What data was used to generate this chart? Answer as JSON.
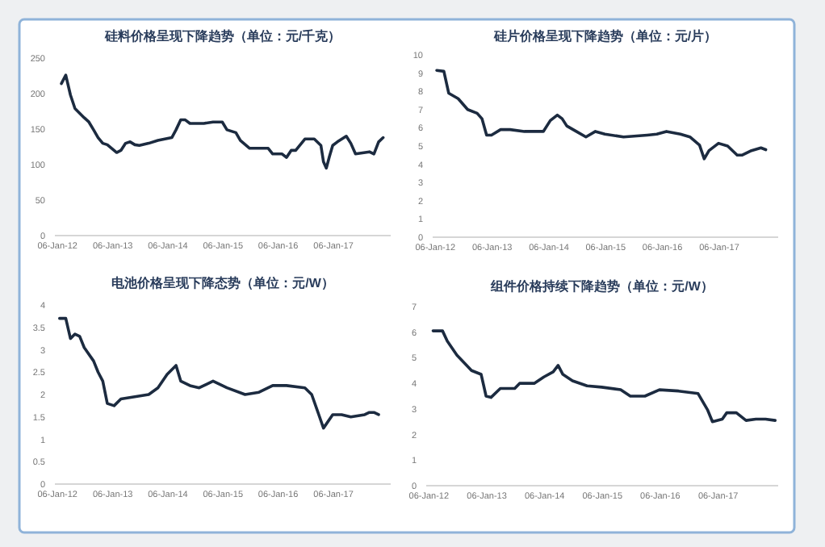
{
  "chart_data": [
    {
      "type": "line",
      "title": "硅料价格呈现下降趋势（单位：元/千克）",
      "color": "#1c2b40",
      "grid": false,
      "xlim": [
        "2011-12-20",
        "2018-01-20"
      ],
      "ylim": [
        0,
        250
      ],
      "yticks": [
        0,
        50,
        100,
        150,
        200,
        250
      ],
      "xticks": [
        {
          "value": "2012-01-06",
          "label": "06-Jan-12"
        },
        {
          "value": "2013-01-06",
          "label": "06-Jan-13"
        },
        {
          "value": "2014-01-06",
          "label": "06-Jan-14"
        },
        {
          "value": "2015-01-06",
          "label": "06-Jan-15"
        },
        {
          "value": "2016-01-06",
          "label": "06-Jan-16"
        },
        {
          "value": "2017-01-06",
          "label": "06-Jan-17"
        }
      ],
      "x": [
        "2012-02-01",
        "2012-03-01",
        "2012-04-01",
        "2012-05-01",
        "2012-07-01",
        "2012-08-01",
        "2012-09-01",
        "2012-10-01",
        "2012-11-01",
        "2012-12-01",
        "2013-02-01",
        "2013-03-01",
        "2013-04-01",
        "2013-05-01",
        "2013-06-01",
        "2013-07-01",
        "2013-09-01",
        "2013-11-01",
        "2014-02-01",
        "2014-03-01",
        "2014-04-01",
        "2014-05-01",
        "2014-06-01",
        "2014-09-01",
        "2014-11-01",
        "2015-01-01",
        "2015-02-01",
        "2015-04-01",
        "2015-05-01",
        "2015-07-01",
        "2015-11-01",
        "2015-12-01",
        "2016-02-01",
        "2016-03-01",
        "2016-04-01",
        "2016-05-01",
        "2016-07-01",
        "2016-09-01",
        "2016-10-15",
        "2016-11-01",
        "2016-11-20",
        "2016-12-10",
        "2017-01-01",
        "2017-02-01",
        "2017-04-01",
        "2017-05-01",
        "2017-06-01",
        "2017-09-01",
        "2017-10-01",
        "2017-11-01",
        "2017-12-01"
      ],
      "values": [
        214,
        226,
        198,
        179,
        166,
        160,
        149,
        138,
        130,
        128,
        117,
        120,
        130,
        132,
        128,
        127,
        130,
        134,
        138,
        149,
        163,
        163,
        158,
        158,
        160,
        160,
        149,
        145,
        134,
        123,
        123,
        115,
        115,
        110,
        120,
        120,
        136,
        136,
        127,
        104,
        95,
        111,
        127,
        132,
        140,
        130,
        115,
        118,
        115,
        132,
        138
      ]
    },
    {
      "type": "line",
      "title": "硅片价格呈现下降趋势（单位：元/片）",
      "color": "#1c2b40",
      "grid": false,
      "xlim": [
        "2011-12-20",
        "2018-01-20"
      ],
      "ylim": [
        0,
        10
      ],
      "yticks": [
        0,
        1,
        2,
        3,
        4,
        5,
        6,
        7,
        8,
        9,
        10
      ],
      "xticks": [
        {
          "value": "2012-01-06",
          "label": "06-Jan-12"
        },
        {
          "value": "2013-01-06",
          "label": "06-Jan-13"
        },
        {
          "value": "2014-01-06",
          "label": "06-Jan-14"
        },
        {
          "value": "2015-01-06",
          "label": "06-Jan-15"
        },
        {
          "value": "2016-01-06",
          "label": "06-Jan-16"
        },
        {
          "value": "2017-01-06",
          "label": "06-Jan-17"
        }
      ],
      "x": [
        "2012-01-15",
        "2012-03-01",
        "2012-04-01",
        "2012-06-01",
        "2012-08-01",
        "2012-10-01",
        "2012-11-01",
        "2012-12-01",
        "2013-01-01",
        "2013-03-01",
        "2013-05-01",
        "2013-08-01",
        "2013-12-01",
        "2014-01-15",
        "2014-03-01",
        "2014-04-01",
        "2014-05-01",
        "2014-07-01",
        "2014-09-01",
        "2014-11-01",
        "2015-01-01",
        "2015-05-01",
        "2015-10-01",
        "2015-12-01",
        "2016-02-01",
        "2016-05-01",
        "2016-07-01",
        "2016-09-01",
        "2016-10-01",
        "2016-11-01",
        "2017-01-01",
        "2017-03-01",
        "2017-05-01",
        "2017-06-01",
        "2017-08-01",
        "2017-10-01",
        "2017-11-01"
      ],
      "values": [
        9.15,
        9.1,
        7.9,
        7.6,
        7.0,
        6.8,
        6.5,
        5.6,
        5.6,
        5.9,
        5.9,
        5.8,
        5.8,
        6.4,
        6.7,
        6.5,
        6.1,
        5.8,
        5.5,
        5.8,
        5.65,
        5.5,
        5.6,
        5.65,
        5.8,
        5.65,
        5.5,
        5.05,
        4.3,
        4.75,
        5.15,
        5.0,
        4.5,
        4.5,
        4.75,
        4.9,
        4.8
      ]
    },
    {
      "type": "line",
      "title": "电池价格呈现下降态势（单位：元/W）",
      "color": "#1c2b40",
      "grid": false,
      "xlim": [
        "2011-12-20",
        "2018-01-20"
      ],
      "ylim": [
        0,
        4
      ],
      "yticks": [
        0,
        0.5,
        1,
        1.5,
        2,
        2.5,
        3,
        3.5,
        4
      ],
      "xticks": [
        {
          "value": "2012-01-06",
          "label": "06-Jan-12"
        },
        {
          "value": "2013-01-06",
          "label": "06-Jan-13"
        },
        {
          "value": "2014-01-06",
          "label": "06-Jan-14"
        },
        {
          "value": "2015-01-06",
          "label": "06-Jan-15"
        },
        {
          "value": "2016-01-06",
          "label": "06-Jan-16"
        },
        {
          "value": "2017-01-06",
          "label": "06-Jan-17"
        }
      ],
      "x": [
        "2012-01-20",
        "2012-03-01",
        "2012-04-01",
        "2012-05-01",
        "2012-06-01",
        "2012-07-01",
        "2012-09-01",
        "2012-10-01",
        "2012-11-01",
        "2012-12-01",
        "2013-01-15",
        "2013-03-01",
        "2013-06-01",
        "2013-09-01",
        "2013-11-01",
        "2014-01-01",
        "2014-03-01",
        "2014-04-01",
        "2014-06-01",
        "2014-08-01",
        "2014-11-01",
        "2015-02-01",
        "2015-06-01",
        "2015-09-01",
        "2015-12-01",
        "2016-03-01",
        "2016-07-01",
        "2016-08-15",
        "2016-10-01",
        "2016-11-01",
        "2017-01-01",
        "2017-03-01",
        "2017-05-01",
        "2017-08-01",
        "2017-09-01",
        "2017-10-01",
        "2017-11-01"
      ],
      "values": [
        3.7,
        3.7,
        3.25,
        3.35,
        3.3,
        3.05,
        2.75,
        2.5,
        2.3,
        1.8,
        1.75,
        1.9,
        1.95,
        2.0,
        2.15,
        2.45,
        2.65,
        2.3,
        2.2,
        2.15,
        2.3,
        2.15,
        2.0,
        2.05,
        2.2,
        2.2,
        2.15,
        2.0,
        1.55,
        1.25,
        1.55,
        1.55,
        1.5,
        1.55,
        1.6,
        1.6,
        1.55
      ]
    },
    {
      "type": "line",
      "title": "组件价格持续下降趋势（单位：元/W）",
      "color": "#1c2b40",
      "grid": false,
      "xlim": [
        "2011-12-20",
        "2018-01-20"
      ],
      "ylim": [
        0,
        7
      ],
      "yticks": [
        0,
        1,
        2,
        3,
        4,
        5,
        6,
        7
      ],
      "xticks": [
        {
          "value": "2012-01-06",
          "label": "06-Jan-12"
        },
        {
          "value": "2013-01-06",
          "label": "06-Jan-13"
        },
        {
          "value": "2014-01-06",
          "label": "06-Jan-14"
        },
        {
          "value": "2015-01-06",
          "label": "06-Jan-15"
        },
        {
          "value": "2016-01-06",
          "label": "06-Jan-16"
        },
        {
          "value": "2017-01-06",
          "label": "06-Jan-17"
        }
      ],
      "x": [
        "2012-02-01",
        "2012-04-01",
        "2012-05-01",
        "2012-07-01",
        "2012-09-01",
        "2012-10-01",
        "2012-12-01",
        "2013-01-01",
        "2013-02-01",
        "2013-04-01",
        "2013-07-01",
        "2013-08-01",
        "2013-11-01",
        "2014-01-01",
        "2014-03-01",
        "2014-04-01",
        "2014-05-01",
        "2014-07-01",
        "2014-10-01",
        "2015-01-01",
        "2015-05-01",
        "2015-07-01",
        "2015-10-01",
        "2016-01-01",
        "2016-05-01",
        "2016-09-01",
        "2016-11-01",
        "2016-12-01",
        "2017-02-01",
        "2017-03-01",
        "2017-05-01",
        "2017-07-01",
        "2017-09-01",
        "2017-11-01",
        "2018-01-01"
      ],
      "values": [
        6.05,
        6.05,
        5.65,
        5.1,
        4.7,
        4.5,
        4.35,
        3.5,
        3.45,
        3.8,
        3.8,
        4.0,
        4.0,
        4.25,
        4.45,
        4.7,
        4.35,
        4.1,
        3.9,
        3.85,
        3.75,
        3.5,
        3.5,
        3.75,
        3.7,
        3.6,
        2.95,
        2.5,
        2.6,
        2.85,
        2.85,
        2.55,
        2.6,
        2.6,
        2.55
      ]
    }
  ]
}
